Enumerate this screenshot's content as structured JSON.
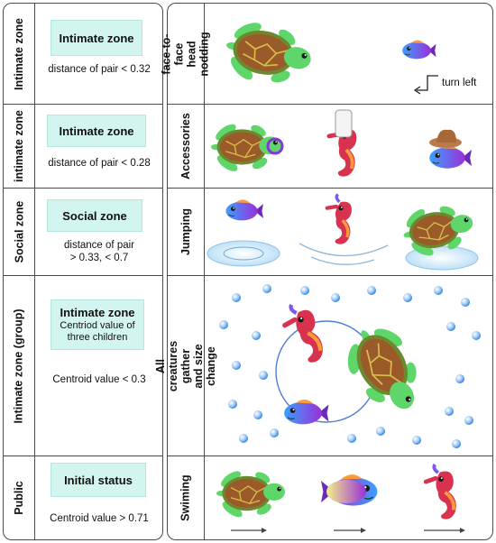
{
  "rows": [
    {
      "zone_label": "Intimate zone",
      "box_title": "Intimate zone",
      "box_sub": "",
      "condition_lines": [
        "distance of pair < 0.32"
      ],
      "action_label": "face-to-face head nodding"
    },
    {
      "zone_label": "intimate zone",
      "box_title": "Intimate zone",
      "box_sub": "",
      "condition_lines": [
        "distance of pair < 0.28"
      ],
      "action_label": "Accessories"
    },
    {
      "zone_label": "Social zone",
      "box_title": "Social zone",
      "box_sub": "",
      "condition_lines": [
        "distance of pair",
        "> 0.33,  < 0.7"
      ],
      "action_label": "Jumping"
    },
    {
      "zone_label": "Intimate zone (group)",
      "box_title": "Intimate zone",
      "box_sub": "Centriod value of three children",
      "condition_lines": [
        "Centroid value < 0.3"
      ],
      "action_label": "All creatures gather and size change"
    },
    {
      "zone_label": "Public",
      "box_title": "Initial status",
      "box_sub": "",
      "condition_lines": [
        "Centroid value > 0.71"
      ],
      "action_label": "Swiming"
    }
  ],
  "annotations": {
    "turn_left": "turn left"
  },
  "colors": {
    "box_fill": "#d3f5ef",
    "turtle_body": "#5fd66a",
    "turtle_shell": "#9a5a2a",
    "fish_purple": "#8a35d8",
    "seahorse_red": "#d8324f",
    "bubble_blue": "#6aaef0",
    "circle_blue": "#4c7fd8"
  },
  "icons": [
    "turtle-icon",
    "fish-icon",
    "seahorse-icon",
    "bubble-icon",
    "turn-arrow-icon",
    "motion-arrow-icon"
  ]
}
